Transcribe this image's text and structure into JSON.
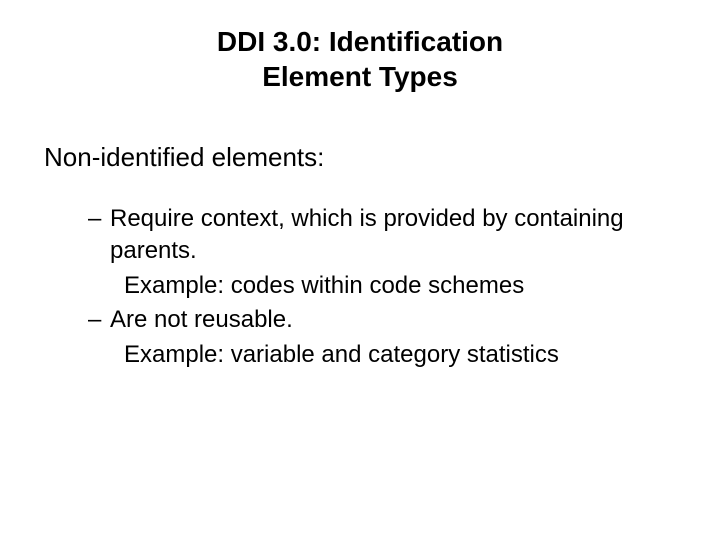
{
  "title": {
    "line1": "DDI 3.0: Identification",
    "line2": "Element Types"
  },
  "sectionHeader": "Non-identified elements:",
  "bullets": {
    "item1": "Require context, which is provided by containing parents.",
    "example1": "Example: codes within code schemes",
    "item2": "Are not reusable.",
    "example2": "Example: variable and category statistics"
  },
  "styling": {
    "background_color": "#ffffff",
    "text_color": "#000000",
    "title_fontsize": 28,
    "title_fontweight": "bold",
    "section_fontsize": 26,
    "body_fontsize": 24,
    "font_family": "Arial, Helvetica, sans-serif",
    "bullet_marker": "–"
  }
}
